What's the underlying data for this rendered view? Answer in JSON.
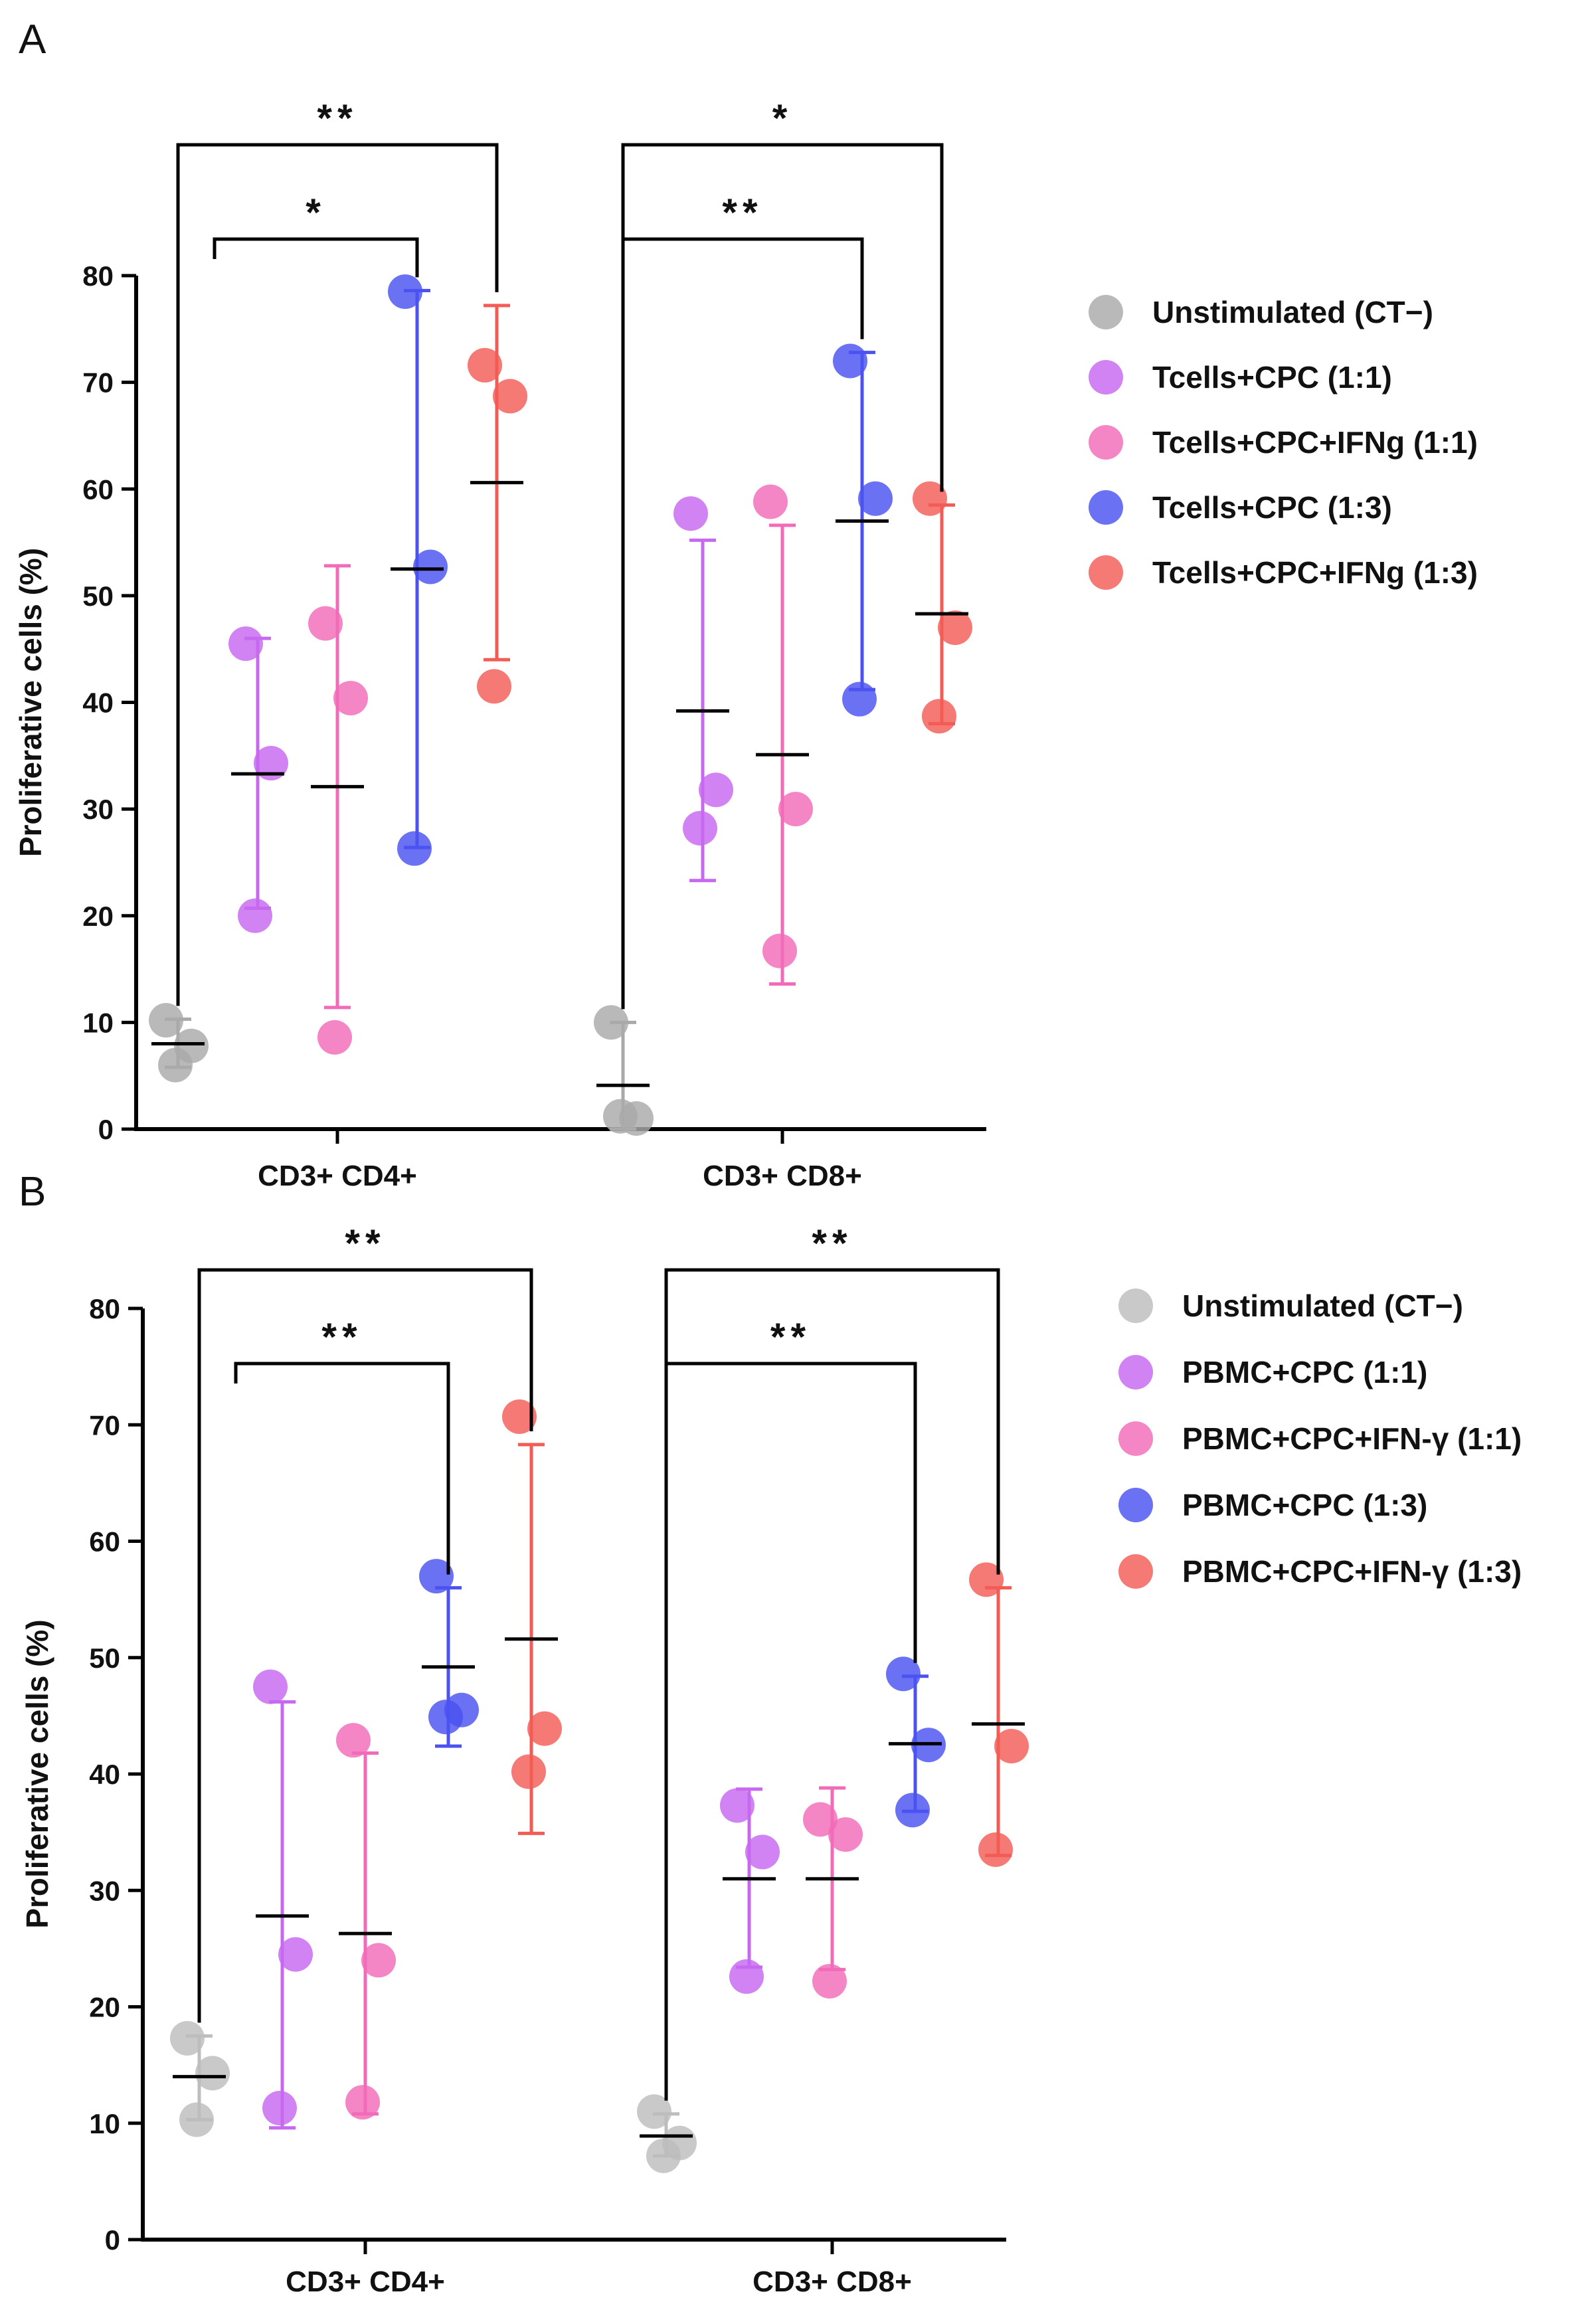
{
  "chart_data": [
    {
      "type": "scatter",
      "panel": "A",
      "ylabel": "Proliferative cells (%)",
      "ylim": [
        0,
        80
      ],
      "yticks": [
        0,
        10,
        20,
        30,
        40,
        50,
        60,
        70,
        80
      ],
      "groups": [
        "CD3+ CD4+",
        "CD3+ CD8+"
      ],
      "legend_position": "right",
      "series": [
        {
          "name": "Unstimulated (CT−)",
          "color": "#a9a9a9",
          "values": [
            [
              10.2,
              7.8,
              6.0
            ],
            [
              10.0,
              1.0,
              1.2
            ]
          ],
          "mean": [
            8.0,
            4.1
          ],
          "errlow": [
            5.8,
            0.0
          ],
          "errhigh": [
            10.3,
            10.0
          ]
        },
        {
          "name": "Tcells+CPC (1:1)",
          "color": "#c768f0",
          "values": [
            [
              45.5,
              34.3,
              20.0
            ],
            [
              57.7,
              31.8,
              28.2
            ]
          ],
          "mean": [
            33.3,
            39.2
          ],
          "errlow": [
            20.7,
            23.3
          ],
          "errhigh": [
            46.0,
            55.2
          ]
        },
        {
          "name": "Tcells+CPC+IFNg (1:1)",
          "color": "#f26bb8",
          "values": [
            [
              47.4,
              40.4,
              8.6
            ],
            [
              58.8,
              30.0,
              16.7
            ]
          ],
          "mean": [
            32.1,
            35.1
          ],
          "errlow": [
            11.4,
            13.6
          ],
          "errhigh": [
            52.8,
            56.6
          ]
        },
        {
          "name": "Tcells+CPC (1:3)",
          "color": "#4b52f0",
          "values": [
            [
              78.5,
              52.7,
              26.3
            ],
            [
              72.0,
              59.1,
              40.3
            ]
          ],
          "mean": [
            52.5,
            57.0
          ],
          "errlow": [
            26.4,
            41.2
          ],
          "errhigh": [
            78.6,
            72.8
          ]
        },
        {
          "name": "Tcells+CPC+IFNg (1:3)",
          "color": "#f35b55",
          "values": [
            [
              71.6,
              68.7,
              41.5
            ],
            [
              59.1,
              47.0,
              38.7
            ]
          ],
          "mean": [
            60.6,
            48.3
          ],
          "errlow": [
            44.0,
            38.0
          ],
          "errhigh": [
            77.2,
            58.5
          ]
        }
      ],
      "significance": [
        {
          "label": "**",
          "group": 0,
          "from": 0,
          "to": 4,
          "level": 1
        },
        {
          "label": "*",
          "group": 0,
          "from": 0,
          "to": 3,
          "level": 0
        },
        {
          "label": "*",
          "group": 1,
          "from": 0,
          "to": 4,
          "level": 1
        },
        {
          "label": "**",
          "group": 1,
          "from": 0,
          "to": 3,
          "level": 0
        }
      ]
    },
    {
      "type": "scatter",
      "panel": "B",
      "ylabel": "Proliferative cells (%)",
      "ylim": [
        0,
        80
      ],
      "yticks": [
        0,
        10,
        20,
        30,
        40,
        50,
        60,
        70,
        80
      ],
      "groups": [
        "CD3+ CD4+",
        "CD3+ CD8+"
      ],
      "legend_position": "right",
      "series": [
        {
          "name": "Unstimulated (CT−)",
          "color": "#bdbdbd",
          "values": [
            [
              17.3,
              14.3,
              10.3
            ],
            [
              11.0,
              8.3,
              7.2
            ]
          ],
          "mean": [
            14.0,
            8.9
          ],
          "errlow": [
            10.3,
            7.2
          ],
          "errhigh": [
            17.5,
            10.8
          ]
        },
        {
          "name": "PBMC+CPC (1:1)",
          "color": "#c768f0",
          "values": [
            [
              47.5,
              24.5,
              11.3
            ],
            [
              37.3,
              33.3,
              22.6
            ]
          ],
          "mean": [
            27.8,
            31.0
          ],
          "errlow": [
            9.6,
            23.4
          ],
          "errhigh": [
            46.2,
            38.7
          ]
        },
        {
          "name": "PBMC+CPC+IFN-γ (1:1)",
          "color": "#f26bb8",
          "values": [
            [
              42.9,
              24.0,
              11.8
            ],
            [
              36.1,
              34.8,
              22.2
            ]
          ],
          "mean": [
            26.3,
            31.0
          ],
          "errlow": [
            10.8,
            23.2
          ],
          "errhigh": [
            41.8,
            38.8
          ]
        },
        {
          "name": "PBMC+CPC (1:3)",
          "color": "#4b52f0",
          "values": [
            [
              57.0,
              45.5,
              44.9
            ],
            [
              48.6,
              42.5,
              36.9
            ]
          ],
          "mean": [
            49.2,
            42.6
          ],
          "errlow": [
            42.4,
            36.8
          ],
          "errhigh": [
            56.0,
            48.4
          ]
        },
        {
          "name": "PBMC+CPC+IFN-γ (1:3)",
          "color": "#f35b55",
          "values": [
            [
              70.7,
              43.9,
              40.2
            ],
            [
              56.7,
              42.4,
              33.5
            ]
          ],
          "mean": [
            51.6,
            44.3
          ],
          "errlow": [
            34.9,
            33.0
          ],
          "errhigh": [
            68.3,
            56.0
          ]
        }
      ],
      "significance": [
        {
          "label": "**",
          "group": 0,
          "from": 0,
          "to": 4,
          "level": 1
        },
        {
          "label": "**",
          "group": 0,
          "from": 0,
          "to": 3,
          "level": 0
        },
        {
          "label": "**",
          "group": 1,
          "from": 0,
          "to": 4,
          "level": 1
        },
        {
          "label": "**",
          "group": 1,
          "from": 0,
          "to": 3,
          "level": 0
        }
      ]
    }
  ]
}
